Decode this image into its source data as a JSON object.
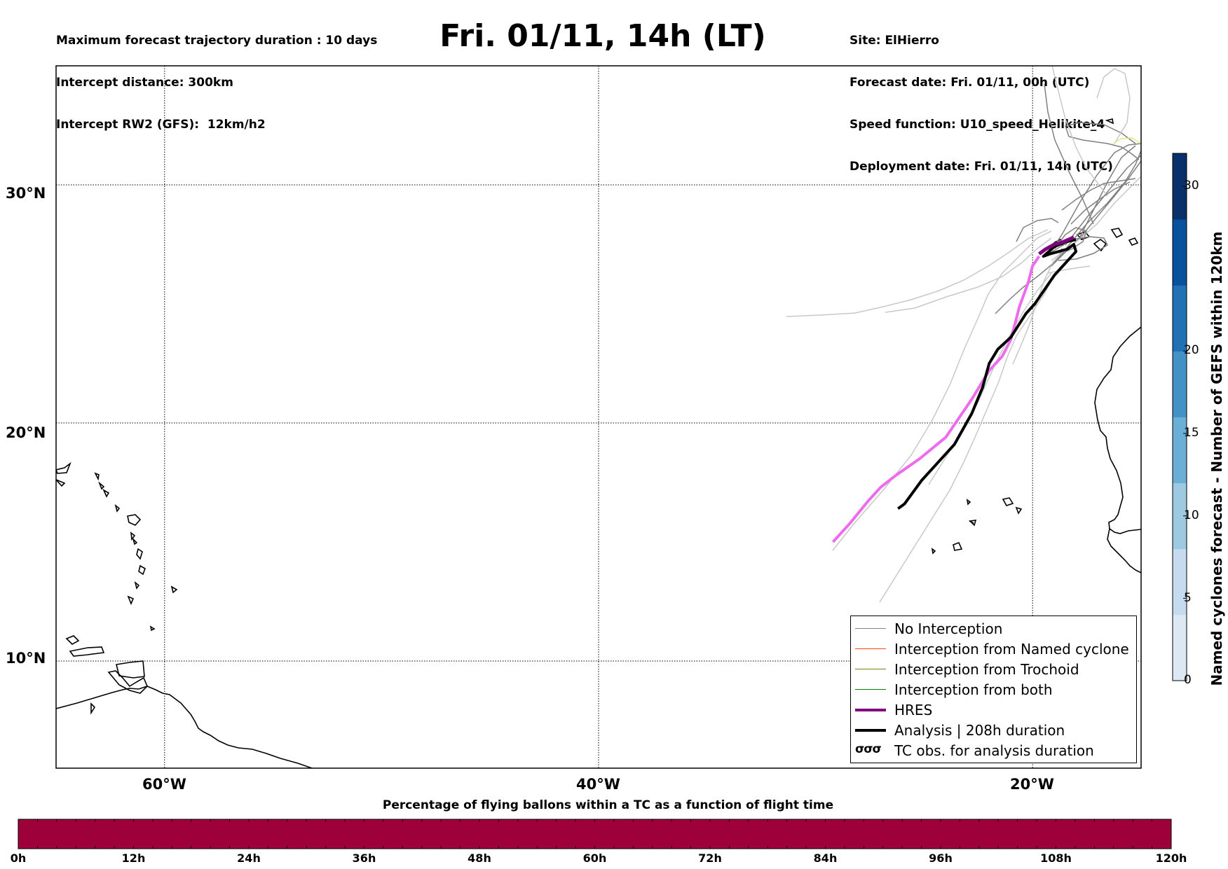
{
  "header": {
    "left_lines": [
      "Maximum forecast trajectory duration : 10 days",
      "Intercept distance: 300km",
      "Intercept RW2 (GFS):  12km/h2"
    ],
    "title": "Fri. 01/11, 14h (LT)",
    "right_lines": [
      "Site: ElHierro",
      "Forecast date: Fri. 01/11, 00h (UTC)",
      "Speed function: U10_speed_Helikite_4",
      "Deployment date: Fri. 01/11, 14h (UTC)"
    ]
  },
  "map": {
    "extent": {
      "lon_min": -65,
      "lon_max": -15,
      "lat_min": 5.5,
      "lat_max": 35
    },
    "lat_labels": [
      "30°N",
      "20°N",
      "10°N"
    ],
    "lon_labels": [
      "60°W",
      "40°W",
      "20°W"
    ],
    "gridlines": {
      "lats": [
        30,
        20,
        10
      ],
      "lons": [
        -60,
        -40,
        -20
      ],
      "style": "dotted"
    },
    "site_marker": "ElHierro",
    "tracks": {
      "hres": {
        "color": "#800080",
        "points": [
          [
            -18.1,
            27.8
          ],
          [
            -18.6,
            27.6
          ],
          [
            -19.0,
            27.5
          ],
          [
            -19.4,
            27.3
          ],
          [
            -19.7,
            27.1
          ]
        ]
      },
      "analysis": {
        "color": "#000000",
        "points": [
          [
            -18.0,
            27.7
          ],
          [
            -18.5,
            27.6
          ],
          [
            -19.0,
            27.4
          ],
          [
            -19.5,
            27.0
          ],
          [
            -19.2,
            27.1
          ],
          [
            -18.4,
            27.3
          ],
          [
            -18.1,
            27.5
          ],
          [
            -18.0,
            27.2
          ],
          [
            -19.0,
            26.2
          ],
          [
            -19.9,
            25.0
          ],
          [
            -20.3,
            24.6
          ],
          [
            -21.0,
            23.6
          ],
          [
            -21.6,
            23.1
          ],
          [
            -22.0,
            22.5
          ],
          [
            -22.3,
            21.5
          ],
          [
            -22.8,
            20.4
          ],
          [
            -23.6,
            19.1
          ],
          [
            -24.5,
            18.2
          ],
          [
            -25.1,
            17.6
          ],
          [
            -25.9,
            16.6
          ],
          [
            -26.2,
            16.4
          ]
        ]
      },
      "ensemble_pink": {
        "color": "#ee6aee",
        "points": [
          [
            -19.7,
            27.0
          ],
          [
            -20.0,
            26.6
          ],
          [
            -20.2,
            25.9
          ],
          [
            -20.6,
            24.9
          ],
          [
            -21.0,
            23.5
          ],
          [
            -21.4,
            22.8
          ],
          [
            -22.0,
            22.2
          ],
          [
            -22.8,
            21.0
          ],
          [
            -24.0,
            19.4
          ],
          [
            -25.2,
            18.5
          ],
          [
            -26.3,
            17.8
          ],
          [
            -27.0,
            17.3
          ],
          [
            -27.6,
            16.7
          ],
          [
            -28.4,
            15.8
          ],
          [
            -29.2,
            15.0
          ]
        ]
      }
    }
  },
  "legend": {
    "items": [
      {
        "label": "No Interception",
        "color": "#808080",
        "width": 1.5
      },
      {
        "label": "Interception from Named cyclone",
        "color": "#ff4500",
        "width": 1.5
      },
      {
        "label": "Interception from Trochoid",
        "color": "#808000",
        "width": 1.5
      },
      {
        "label": "Interception from both",
        "color": "#008000",
        "width": 1.5
      },
      {
        "label": "HRES",
        "color": "#800080",
        "width": 4
      },
      {
        "label": "Analysis | 208h duration",
        "color": "#000000",
        "width": 4
      }
    ],
    "tc_symbol": "σσσ",
    "tc_label": "TC obs. for analysis duration"
  },
  "colorbar": {
    "label": "Named cyclones forecast - Number of GEFS within 120km",
    "ticks": [
      "30",
      "20",
      "15",
      "10",
      "5",
      "0"
    ],
    "tick_values": [
      30,
      20,
      15,
      10,
      5,
      0
    ],
    "range": [
      0,
      32
    ],
    "colors": [
      "#dce9f5",
      "#c6dbef",
      "#9ecae1",
      "#6baed6",
      "#4292c6",
      "#2171b5",
      "#08519c",
      "#08306b"
    ]
  },
  "bottom_bar": {
    "title": "Percentage of flying ballons within a TC as a function of flight time",
    "ticks": [
      "0h",
      "12h",
      "24h",
      "36h",
      "48h",
      "60h",
      "72h",
      "84h",
      "96h",
      "108h",
      "120h"
    ],
    "color": "#9e003a",
    "value_percent": 0
  }
}
